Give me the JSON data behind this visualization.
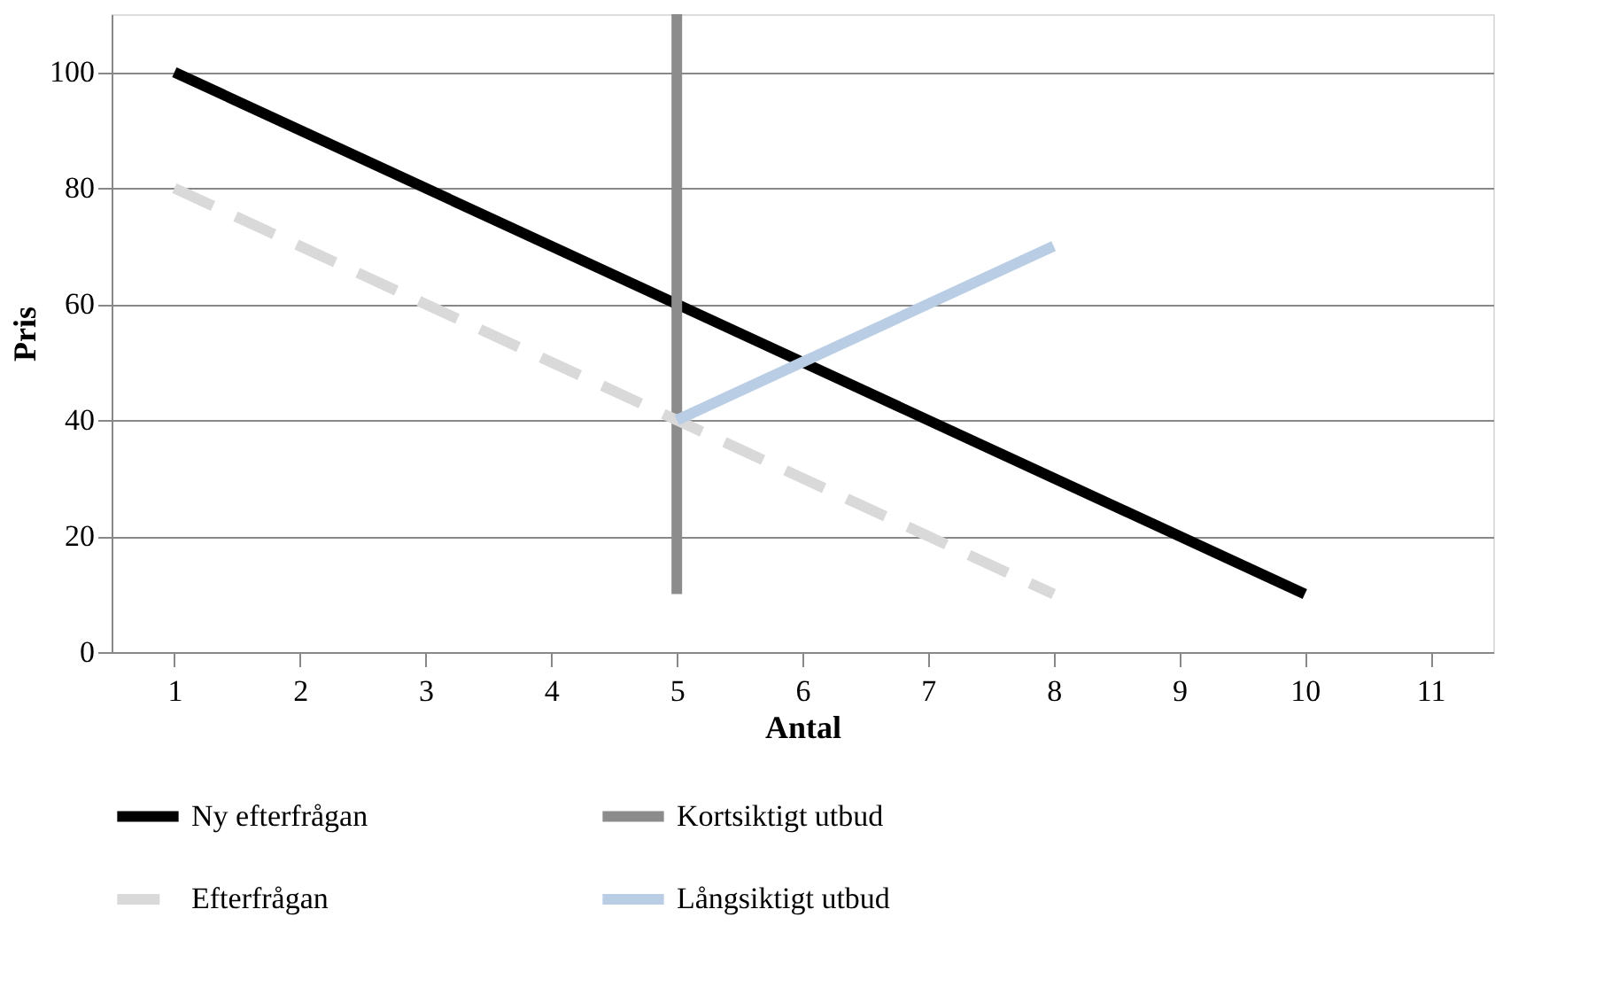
{
  "chart_data": {
    "type": "line",
    "xlabel": "Antal",
    "ylabel": "Pris",
    "xlim": [
      0.5,
      11.5
    ],
    "xticks": [
      1,
      2,
      3,
      4,
      5,
      6,
      7,
      8,
      9,
      10,
      11
    ],
    "ylim": [
      0,
      110
    ],
    "yticks": [
      0,
      20,
      40,
      60,
      80,
      100
    ],
    "grid": "y",
    "legend": "bottom",
    "marker": "none",
    "series": [
      {
        "name": "Ny efterfrågan",
        "color": "#000000",
        "line_style": "solid",
        "x": [
          1,
          10
        ],
        "values": [
          100,
          10
        ]
      },
      {
        "name": "Kortsiktigt utbud",
        "color": "#8c8c8c",
        "line_style": "solid",
        "x": [
          5,
          5
        ],
        "values": [
          10,
          110
        ]
      },
      {
        "name": "Efterfrågan",
        "color": "#d9d9d9",
        "line_style": "dashed",
        "x": [
          1,
          8
        ],
        "values": [
          80,
          10
        ]
      },
      {
        "name": "Långsiktigt utbud",
        "color": "#b9cde5",
        "line_style": "solid",
        "x": [
          5,
          8
        ],
        "values": [
          40,
          70
        ]
      }
    ]
  }
}
